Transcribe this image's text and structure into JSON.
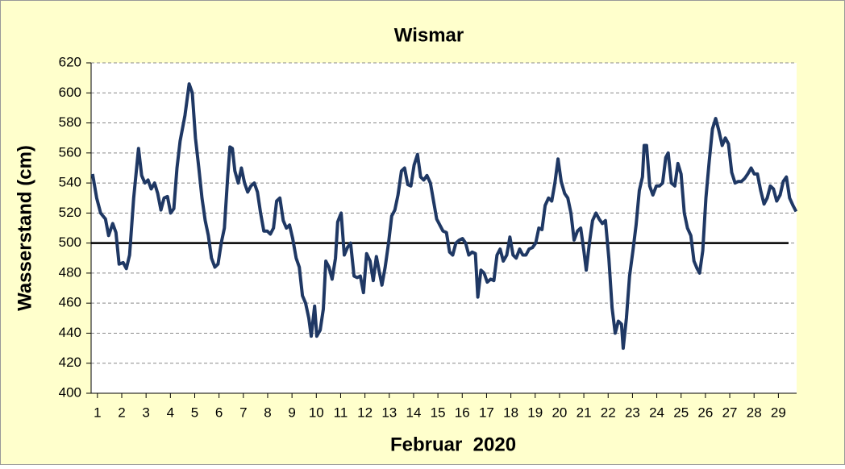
{
  "chart_data": {
    "type": "line",
    "title": "Wismar",
    "x_label": "Februar  2020",
    "y_label": "Wasserstand (cm)",
    "x": [
      0.8,
      0.97,
      1.13,
      1.33,
      1.46,
      1.63,
      1.76,
      1.89,
      2.06,
      2.19,
      2.32,
      2.49,
      2.69,
      2.82,
      2.95,
      3.08,
      3.21,
      3.35,
      3.48,
      3.61,
      3.74,
      3.88,
      4.01,
      4.14,
      4.27,
      4.4,
      4.6,
      4.77,
      4.9,
      5.03,
      5.17,
      5.3,
      5.43,
      5.56,
      5.69,
      5.83,
      5.96,
      6.09,
      6.22,
      6.36,
      6.45,
      6.55,
      6.65,
      6.79,
      6.92,
      7.05,
      7.18,
      7.31,
      7.45,
      7.58,
      7.71,
      7.84,
      7.98,
      8.11,
      8.24,
      8.37,
      8.5,
      8.64,
      8.77,
      8.9,
      9.03,
      9.17,
      9.3,
      9.43,
      9.56,
      9.69,
      9.79,
      9.93,
      10.02,
      10.16,
      10.29,
      10.39,
      10.52,
      10.65,
      10.79,
      10.88,
      11.02,
      11.15,
      11.28,
      11.41,
      11.55,
      11.68,
      11.81,
      11.94,
      12.07,
      12.21,
      12.34,
      12.47,
      12.6,
      12.7,
      12.83,
      12.97,
      13.1,
      13.23,
      13.36,
      13.5,
      13.63,
      13.76,
      13.89,
      14.02,
      14.16,
      14.29,
      14.42,
      14.55,
      14.69,
      14.82,
      14.95,
      15.08,
      15.21,
      15.35,
      15.48,
      15.61,
      15.74,
      15.88,
      16.01,
      16.14,
      16.27,
      16.41,
      16.54,
      16.64,
      16.77,
      16.9,
      17.03,
      17.17,
      17.3,
      17.43,
      17.56,
      17.69,
      17.83,
      17.96,
      18.09,
      18.22,
      18.36,
      18.49,
      18.62,
      18.75,
      18.89,
      19.02,
      19.15,
      19.28,
      19.41,
      19.55,
      19.68,
      19.81,
      19.94,
      20.07,
      20.21,
      20.34,
      20.47,
      20.6,
      20.74,
      20.87,
      21.0,
      21.1,
      21.23,
      21.36,
      21.5,
      21.63,
      21.76,
      21.89,
      22.03,
      22.16,
      22.29,
      22.42,
      22.55,
      22.62,
      22.75,
      22.88,
      23.02,
      23.15,
      23.28,
      23.41,
      23.48,
      23.58,
      23.71,
      23.84,
      23.98,
      24.11,
      24.24,
      24.37,
      24.47,
      24.6,
      24.74,
      24.87,
      25.0,
      25.13,
      25.26,
      25.4,
      25.53,
      25.66,
      25.76,
      25.89,
      26.02,
      26.16,
      26.29,
      26.42,
      26.55,
      26.69,
      26.82,
      26.95,
      27.08,
      27.22,
      27.35,
      27.48,
      27.61,
      27.74,
      27.88,
      28.01,
      28.14,
      28.27,
      28.41,
      28.54,
      28.67,
      28.8,
      28.93,
      29.07,
      29.2,
      29.33,
      29.46,
      29.6,
      29.73
    ],
    "series": [
      {
        "color": "#1f3864",
        "values": [
          546,
          530,
          520,
          516,
          505,
          513,
          507,
          486,
          487,
          483,
          492,
          530,
          563,
          545,
          540,
          542,
          536,
          540,
          533,
          522,
          530,
          531,
          520,
          523,
          550,
          568,
          585,
          606,
          600,
          570,
          550,
          530,
          515,
          505,
          490,
          484,
          486,
          500,
          510,
          545,
          564,
          563,
          548,
          540,
          550,
          540,
          534,
          538,
          540,
          534,
          520,
          508,
          508,
          506,
          510,
          528,
          530,
          515,
          510,
          512,
          503,
          490,
          484,
          465,
          460,
          450,
          438,
          458,
          438,
          442,
          456,
          488,
          484,
          476,
          490,
          514,
          520,
          492,
          497,
          500,
          478,
          477,
          478,
          467,
          493,
          488,
          475,
          491,
          480,
          472,
          484,
          500,
          518,
          522,
          532,
          548,
          550,
          539,
          538,
          552,
          559,
          544,
          542,
          545,
          540,
          528,
          516,
          512,
          508,
          507,
          494,
          492,
          500,
          502,
          503,
          500,
          492,
          494,
          493,
          464,
          482,
          480,
          474,
          476,
          475,
          492,
          496,
          488,
          492,
          504,
          492,
          490,
          496,
          492,
          492,
          496,
          497,
          500,
          510,
          509,
          525,
          530,
          528,
          540,
          556,
          541,
          533,
          530,
          520,
          502,
          508,
          510,
          495,
          482,
          500,
          515,
          520,
          516,
          513,
          515,
          490,
          457,
          440,
          448,
          446,
          430,
          450,
          478,
          495,
          512,
          535,
          544,
          565,
          565,
          538,
          532,
          538,
          538,
          540,
          557,
          560,
          540,
          538,
          553,
          546,
          520,
          510,
          505,
          488,
          483,
          480,
          495,
          530,
          555,
          576,
          583,
          575,
          565,
          570,
          566,
          547,
          540,
          541,
          541,
          543,
          546,
          550,
          546,
          546,
          535,
          526,
          530,
          538,
          536,
          528,
          532,
          541,
          544,
          530,
          525,
          521
        ]
      }
    ],
    "reference_line": {
      "value": 500,
      "color": "#000000"
    },
    "xlim": [
      0.74,
      29.75
    ],
    "xticks": [
      1,
      2,
      3,
      4,
      5,
      6,
      7,
      8,
      9,
      10,
      11,
      12,
      13,
      14,
      15,
      16,
      17,
      18,
      19,
      20,
      21,
      22,
      23,
      24,
      25,
      26,
      27,
      28,
      29
    ],
    "ylim": [
      400,
      620
    ],
    "yticks": [
      400,
      420,
      440,
      460,
      480,
      500,
      520,
      540,
      560,
      580,
      600,
      620
    ],
    "grid": true
  }
}
